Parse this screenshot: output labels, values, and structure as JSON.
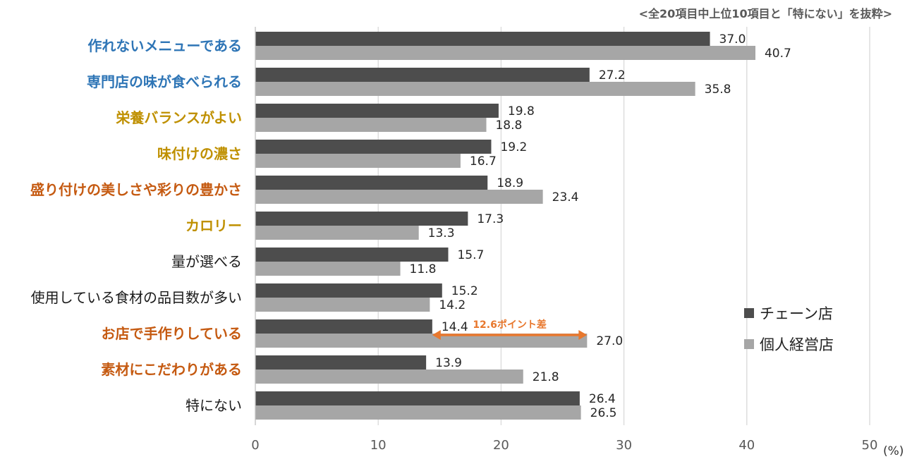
{
  "note": "<全20項目中上位10項目と「特にない」を抜粋>",
  "unit": "(%)",
  "annotation": {
    "text": "12.6ポイント差",
    "color": "#e8782e"
  },
  "colors": {
    "chain": "#4d4d4d",
    "independent": "#a6a6a6",
    "blue": "#2e75b6",
    "gold": "#bf9000",
    "orange": "#c55a11",
    "black": "#1a1a1a"
  },
  "chart_data": {
    "type": "bar",
    "orientation": "horizontal",
    "categories": [
      "作れないメニューである",
      "専門店の味が食べられる",
      "栄養バランスがよい",
      "味付けの濃さ",
      "盛り付けの美しさや彩りの豊かさ",
      "カロリー",
      "量が選べる",
      "使用している食材の品目数が多い",
      "お店で手作りしている",
      "素材にこだわりがある",
      "特にない"
    ],
    "category_colors": [
      "blue",
      "blue",
      "gold",
      "gold",
      "orange",
      "gold",
      "black",
      "black",
      "orange",
      "orange",
      "black"
    ],
    "category_bold": [
      true,
      true,
      true,
      true,
      true,
      true,
      false,
      false,
      true,
      true,
      false
    ],
    "series": [
      {
        "name": "チェーン店",
        "color": "#4d4d4d",
        "values": [
          37.0,
          27.2,
          19.8,
          19.2,
          18.9,
          17.3,
          15.7,
          15.2,
          14.4,
          13.9,
          26.4
        ]
      },
      {
        "name": "個人経営店",
        "color": "#a6a6a6",
        "values": [
          40.7,
          35.8,
          18.8,
          16.7,
          23.4,
          13.3,
          11.8,
          14.2,
          27.0,
          21.8,
          26.5
        ]
      }
    ],
    "xlim": [
      0,
      50
    ],
    "xticks": [
      0,
      10,
      20,
      30,
      40,
      50
    ],
    "grid": true,
    "legend_position": "right"
  }
}
